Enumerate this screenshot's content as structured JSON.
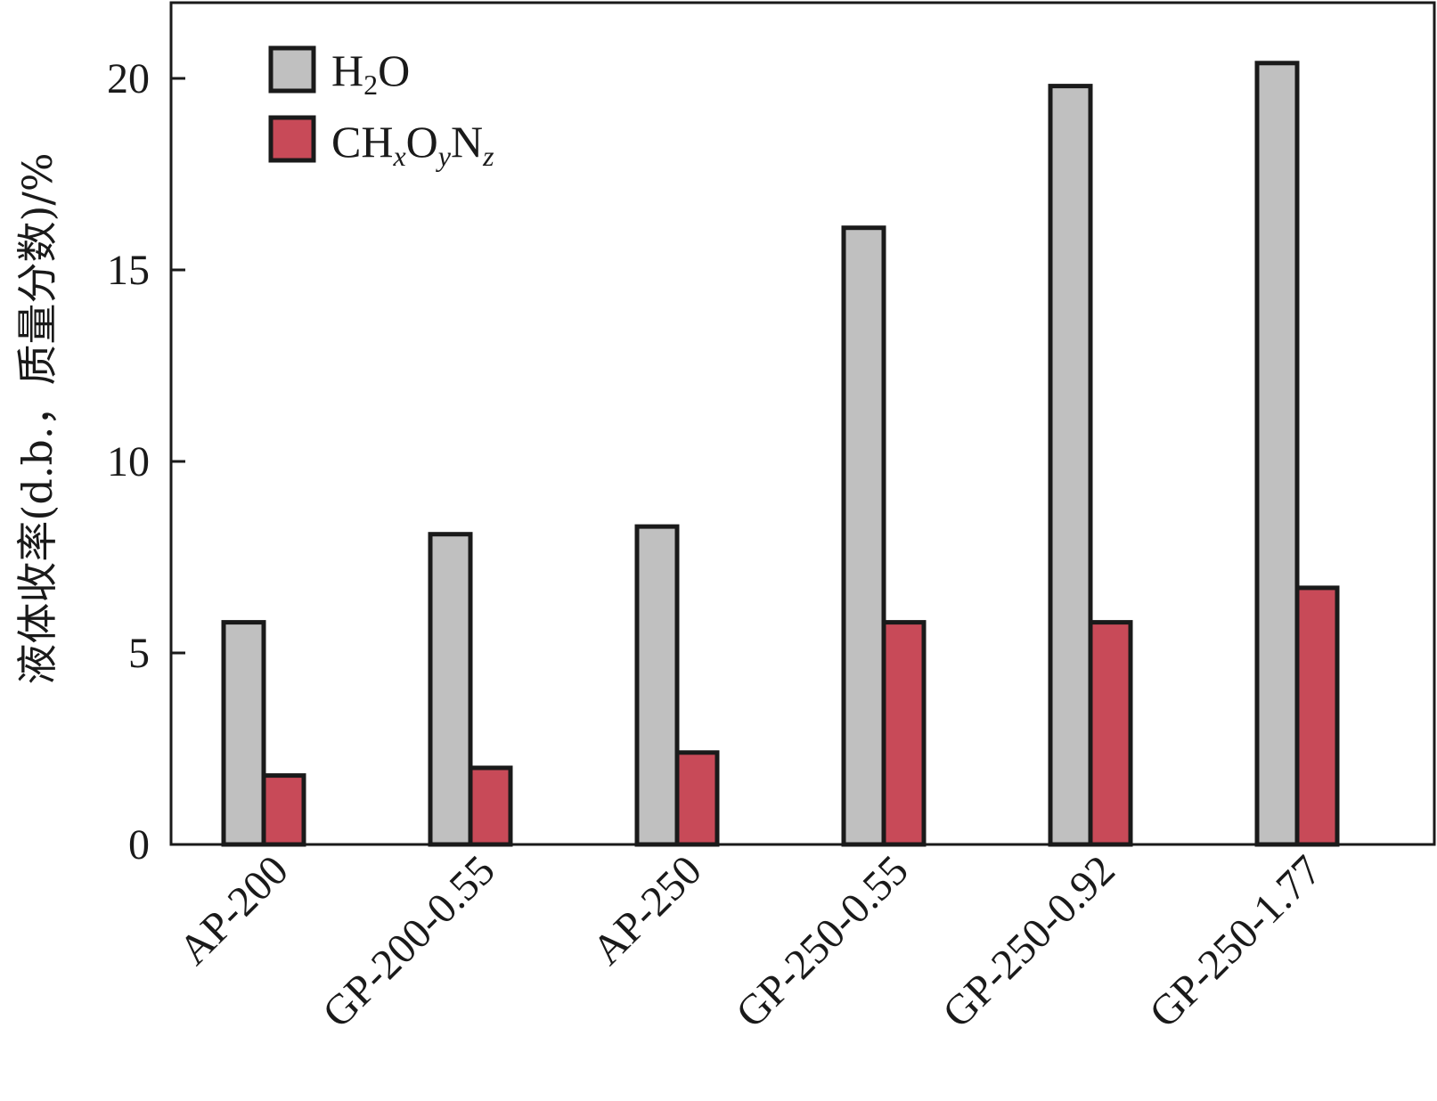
{
  "chart_data": {
    "type": "bar",
    "title": "",
    "xlabel": "",
    "ylabel": "液体收率(d.b.，质量分数)/%",
    "ylim": [
      0,
      22
    ],
    "yticks": [
      0,
      5,
      10,
      15,
      20
    ],
    "grid": false,
    "legend_position": "top-left",
    "categories": [
      "AP-200",
      "GP-200-0.55",
      "AP-250",
      "GP-250-0.55",
      "GP-250-0.92",
      "GP-250-1.77"
    ],
    "series": [
      {
        "name": "H2O",
        "legend": {
          "base": "H",
          "sub1": "2",
          "rest": "O"
        },
        "color": "#c0c0c0",
        "values": [
          5.8,
          8.1,
          8.3,
          16.1,
          19.8,
          20.4
        ]
      },
      {
        "name": "CHxOyNz",
        "legend": {
          "p1": "CH",
          "s1": "x",
          "p2": "O",
          "s2": "y",
          "p3": "N",
          "s3": "z"
        },
        "color": "#c84a58",
        "values": [
          1.8,
          2.0,
          2.4,
          5.8,
          5.8,
          6.7
        ]
      }
    ]
  }
}
